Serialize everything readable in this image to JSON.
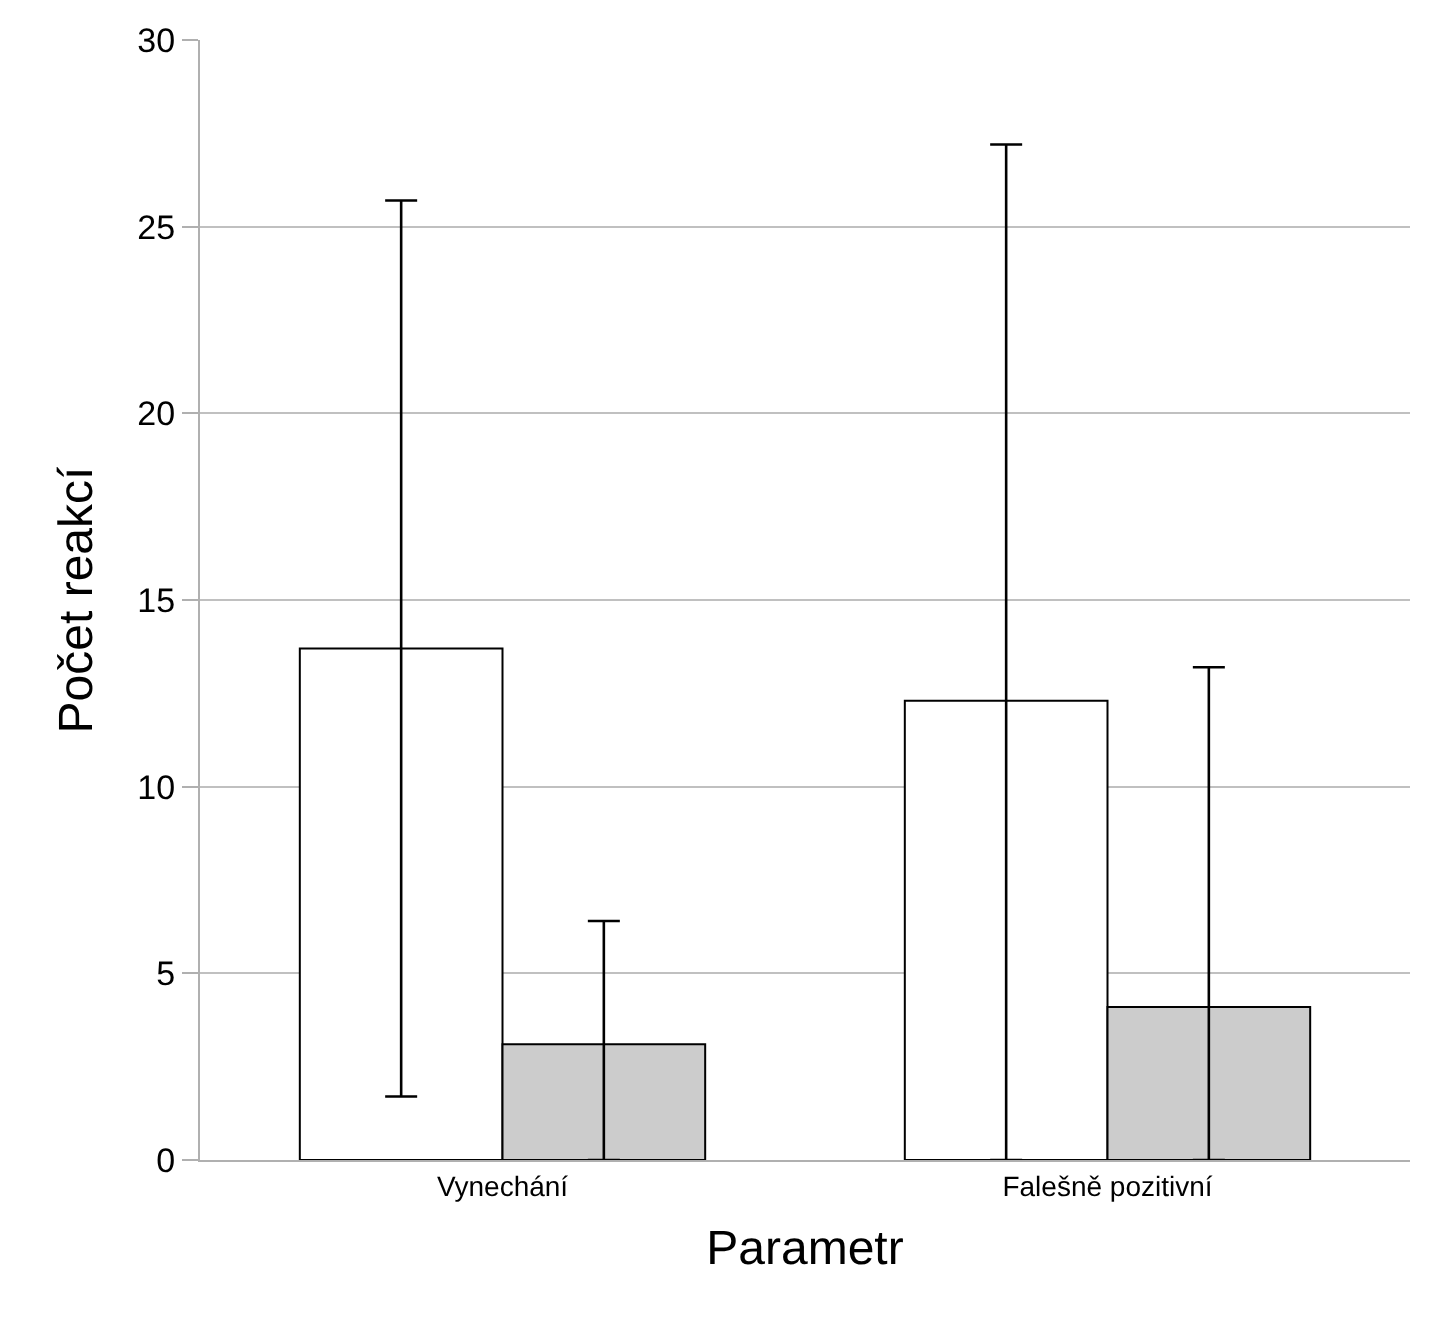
{
  "chart_data": {
    "type": "bar",
    "xlabel": "Parametr",
    "ylabel": "Počet reakcí",
    "categories": [
      "Vynechání",
      "Falešně pozitivní"
    ],
    "series": [
      {
        "color": "#ffffff",
        "values": [
          13.7,
          12.3
        ],
        "errors": [
          [
            1.7,
            25.7
          ],
          [
            0,
            27.2
          ]
        ]
      },
      {
        "color": "#cccccc",
        "values": [
          3.1,
          4.1
        ],
        "errors": [
          [
            0,
            6.4
          ],
          [
            0,
            13.2
          ]
        ]
      }
    ],
    "ylim": [
      0,
      30
    ],
    "yticks": [
      0,
      5,
      10,
      15,
      20,
      25,
      30
    ],
    "grid": "y"
  }
}
